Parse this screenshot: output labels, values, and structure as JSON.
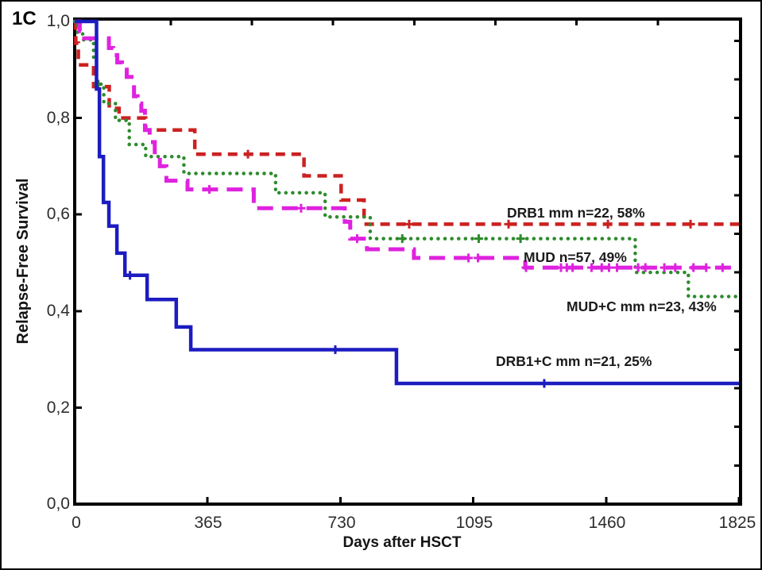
{
  "figure": {
    "panel_label": "1C",
    "background": "#ffffff",
    "border_color": "#000000"
  },
  "chart_data": {
    "type": "line",
    "subtype": "kaplan-meier-step-survival",
    "title": "",
    "xlabel": "Days after HSCT",
    "ylabel": "Relapse-Free Survival",
    "xlim": [
      0,
      1825
    ],
    "ylim": [
      0.0,
      1.0
    ],
    "grid": false,
    "legend_position": "inline-labels",
    "axis_color": "#000000",
    "xticks": [
      {
        "value": 0,
        "label": "0"
      },
      {
        "value": 365,
        "label": "365"
      },
      {
        "value": 730,
        "label": "730"
      },
      {
        "value": 1095,
        "label": "1095"
      },
      {
        "value": 1460,
        "label": "1460"
      },
      {
        "value": 1825,
        "label": "1825"
      }
    ],
    "yticks": [
      {
        "value": 1.0,
        "label": "1,0"
      },
      {
        "value": 0.8,
        "label": "0,8"
      },
      {
        "value": 0.6,
        "label": "0,6"
      },
      {
        "value": 0.4,
        "label": "0,4"
      },
      {
        "value": 0.2,
        "label": "0,2"
      },
      {
        "value": 0.0,
        "label": "0,0"
      }
    ],
    "axes_decor": {
      "top_minor_tick_days": [
        264,
        487,
        710,
        933,
        1156,
        1379,
        1602
      ],
      "right_minor_tick_value_step": 0.08
    },
    "series": [
      {
        "id": "drb1-mm",
        "name": "DRB1 mm",
        "label": "DRB1 mm n=22, 58%",
        "n": 22,
        "final_percent": 58,
        "color": "#cc2121",
        "line_style": "dashed",
        "points": [
          [
            0,
            1.0
          ],
          [
            3,
            0.955
          ],
          [
            10,
            0.91
          ],
          [
            52,
            0.865
          ],
          [
            95,
            0.82
          ],
          [
            122,
            0.8
          ],
          [
            195,
            0.775
          ],
          [
            330,
            0.725
          ],
          [
            630,
            0.68
          ],
          [
            732,
            0.63
          ],
          [
            795,
            0.58
          ],
          [
            1825,
            0.58
          ]
        ],
        "censor_days": [
          476,
          919,
          1192,
          1465,
          1692
        ]
      },
      {
        "id": "mud-c-mm",
        "name": "MUD+C mm",
        "label": "MUD+C mm n=23, 43%",
        "n": 23,
        "final_percent": 43,
        "color": "#2e8b2e",
        "line_style": "dotted",
        "points": [
          [
            0,
            1.0
          ],
          [
            8,
            0.975
          ],
          [
            22,
            0.962
          ],
          [
            52,
            0.92
          ],
          [
            60,
            0.87
          ],
          [
            80,
            0.83
          ],
          [
            112,
            0.795
          ],
          [
            150,
            0.745
          ],
          [
            195,
            0.72
          ],
          [
            300,
            0.685
          ],
          [
            552,
            0.645
          ],
          [
            688,
            0.595
          ],
          [
            812,
            0.55
          ],
          [
            1540,
            0.48
          ],
          [
            1686,
            0.43
          ],
          [
            1825,
            0.43
          ]
        ],
        "censor_days": [
          65,
          900,
          1110,
          1225
        ]
      },
      {
        "id": "mud",
        "name": "MUD",
        "label": "MUD n=57, 49%",
        "n": 57,
        "final_percent": 49,
        "color": "#df22df",
        "line_style": "longdash",
        "points": [
          [
            0,
            1.0
          ],
          [
            14,
            0.98
          ],
          [
            26,
            0.965
          ],
          [
            94,
            0.945
          ],
          [
            106,
            0.93
          ],
          [
            117,
            0.915
          ],
          [
            130,
            0.9
          ],
          [
            143,
            0.885
          ],
          [
            163,
            0.845
          ],
          [
            173,
            0.83
          ],
          [
            183,
            0.815
          ],
          [
            193,
            0.775
          ],
          [
            206,
            0.75
          ],
          [
            220,
            0.72
          ],
          [
            234,
            0.7
          ],
          [
            252,
            0.67
          ],
          [
            310,
            0.652
          ],
          [
            492,
            0.613
          ],
          [
            742,
            0.585
          ],
          [
            757,
            0.55
          ],
          [
            803,
            0.528
          ],
          [
            932,
            0.51
          ],
          [
            1238,
            0.49
          ],
          [
            1825,
            0.49
          ]
        ],
        "censor_days": [
          370,
          622,
          776,
          1082,
          1108,
          1240,
          1336,
          1352,
          1368,
          1420,
          1448,
          1468,
          1490,
          1548,
          1568,
          1620,
          1650,
          1700,
          1735,
          1780
        ]
      },
      {
        "id": "drb1-c-mm",
        "name": "DRB1+C mm",
        "label": "DRB1+C mm n=21, 25%",
        "n": 21,
        "final_percent": 25,
        "color": "#1c1cc0",
        "line_style": "solid",
        "points": [
          [
            0,
            1.0
          ],
          [
            60,
            0.86
          ],
          [
            68,
            0.72
          ],
          [
            79,
            0.625
          ],
          [
            94,
            0.576
          ],
          [
            116,
            0.52
          ],
          [
            138,
            0.474
          ],
          [
            199,
            0.424
          ],
          [
            279,
            0.367
          ],
          [
            319,
            0.32
          ],
          [
            884,
            0.25
          ],
          [
            1825,
            0.25
          ]
        ],
        "censor_days": [
          152,
          716,
          1290
        ]
      }
    ]
  }
}
